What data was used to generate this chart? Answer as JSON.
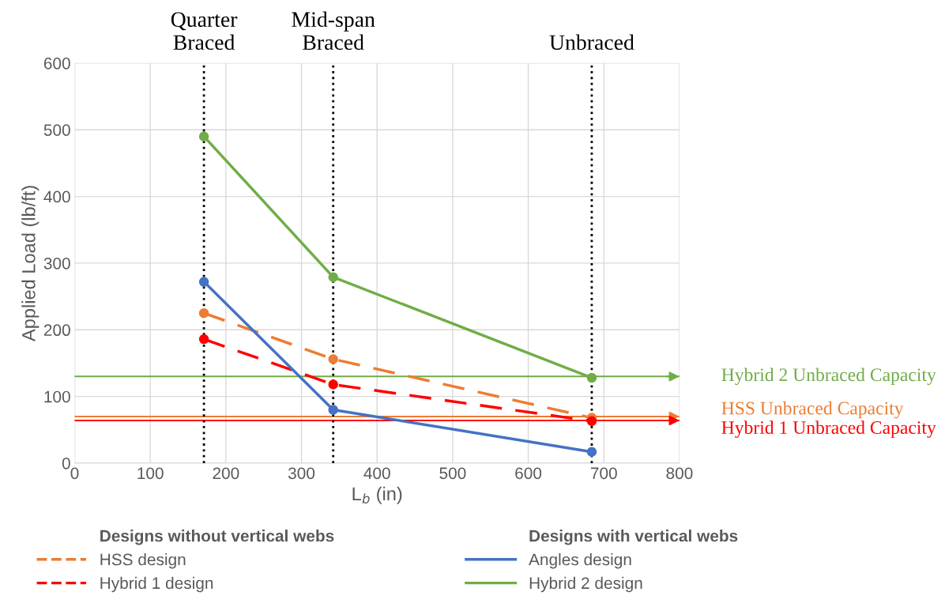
{
  "chart_data": {
    "type": "line",
    "xlabel": "L$_{b}$ (in)",
    "ylabel": "Applied Load (lb/ft)",
    "x": [
      171,
      342,
      684
    ],
    "series": [
      {
        "name": "HSS design",
        "color": "#ed7d31",
        "values": [
          225,
          156,
          68
        ],
        "line_style": "dashed"
      },
      {
        "name": "Hybrid 1 design",
        "color": "#ff0000",
        "values": [
          186,
          118,
          63
        ],
        "line_style": "dashed"
      },
      {
        "name": "Angles design",
        "color": "#4472c4",
        "values": [
          272,
          80,
          17
        ],
        "line_style": "solid"
      },
      {
        "name": "Hybrid 2 design",
        "color": "#70ad47",
        "values": [
          490,
          279,
          128
        ],
        "line_style": "solid"
      }
    ],
    "marker": "circle",
    "xlim": [
      0,
      800
    ],
    "xticks": [
      0,
      100,
      200,
      300,
      400,
      500,
      600,
      700,
      800
    ],
    "ylim": [
      0,
      600
    ],
    "yticks": [
      0,
      100,
      200,
      300,
      400,
      500,
      600
    ],
    "grid": true,
    "legend": "bottom",
    "annotations": [
      "Designs without vertical webs",
      "Designs with vertical webs"
    ],
    "ref_lines": [
      {
        "axis": "x",
        "value": 171,
        "label": "Quarter\nBraced",
        "color": "#000000",
        "line_style": "dotted"
      },
      {
        "axis": "x",
        "value": 342,
        "label": "Mid-span\nBraced",
        "color": "#000000",
        "line_style": "dotted"
      },
      {
        "axis": "x",
        "value": 684,
        "label": "Unbraced",
        "color": "#000000",
        "line_style": "dotted"
      },
      {
        "axis": "y",
        "value": 130,
        "label": "Hybrid 2 Unbraced Capacity",
        "color": "#70ad47",
        "line_style": "solid"
      },
      {
        "axis": "y",
        "value": 70,
        "label": "HSS Unbraced Capacity",
        "color": "#ed7d31",
        "line_style": "solid"
      },
      {
        "axis": "y",
        "value": 64,
        "label": "Hybrid 1 Unbraced Capacity",
        "color": "#ff0000",
        "line_style": "solid"
      }
    ]
  }
}
